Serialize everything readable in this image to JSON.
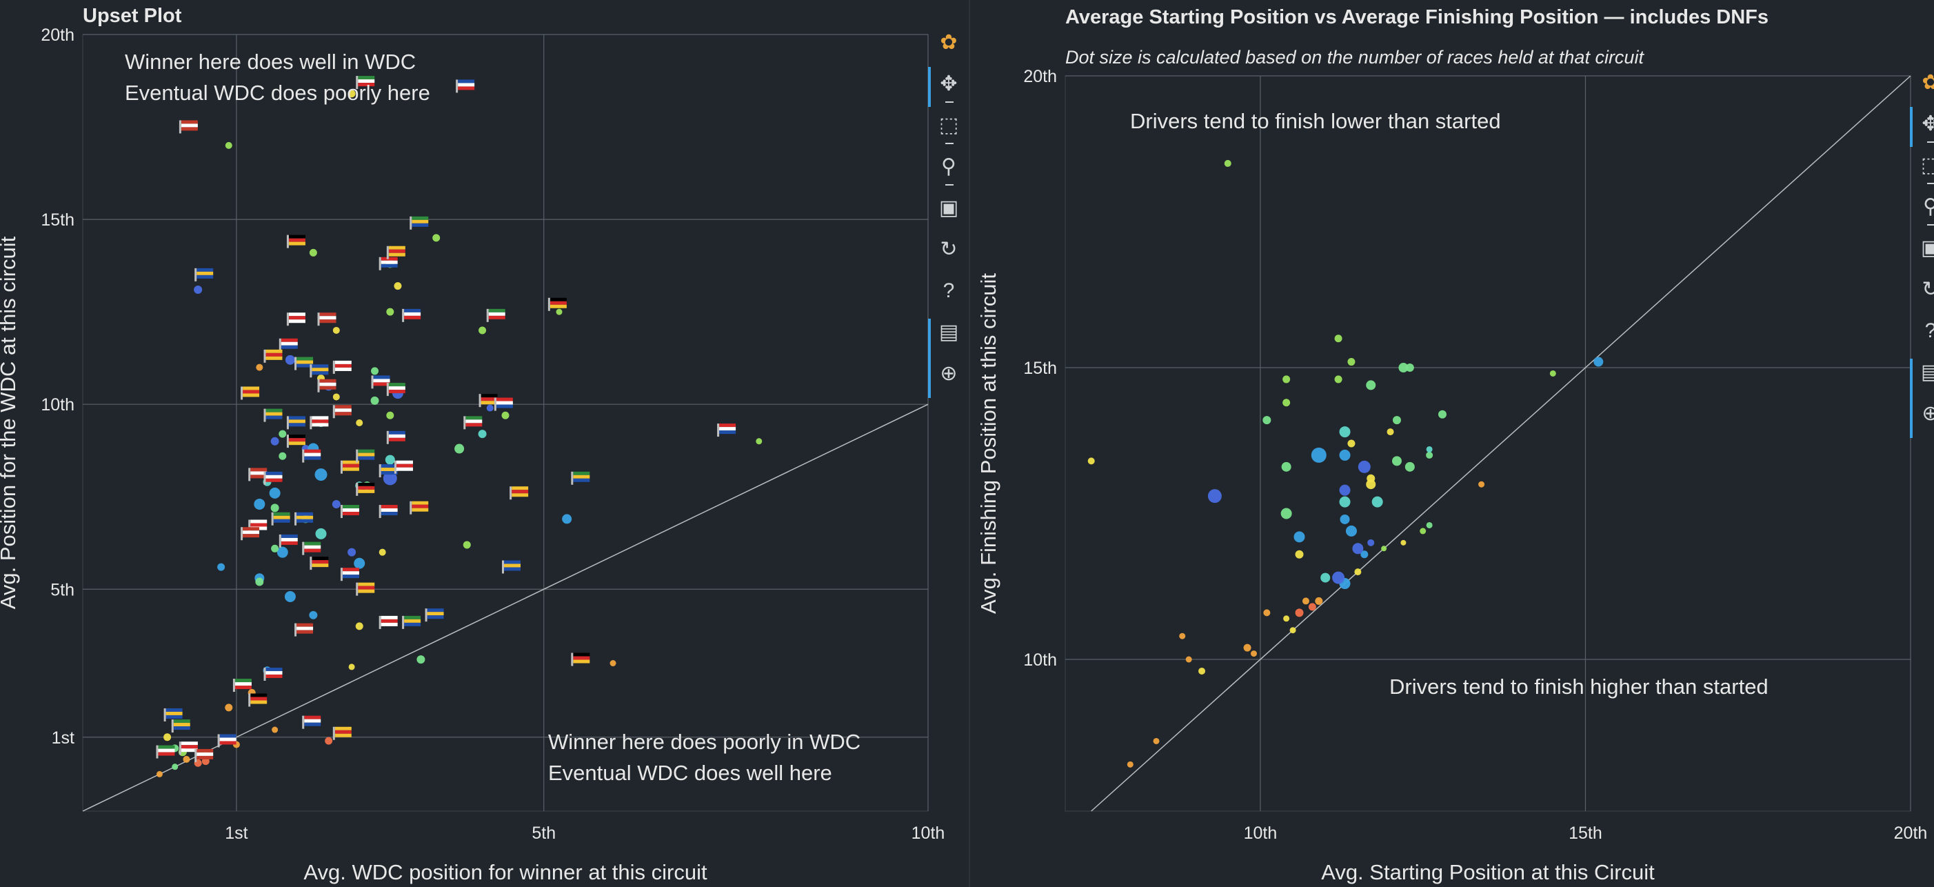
{
  "colors": {
    "background": "#20262b",
    "grid": "#5a6168",
    "text": "#e8e8e8",
    "diagonal": "#b9bcc0",
    "toolbar_active": "#3aa1e4"
  },
  "toolbar_icons": [
    "bokeh-logo-icon",
    "pan-icon",
    "box-zoom-icon",
    "wheel-zoom-icon",
    "save-icon",
    "reset-icon",
    "help-icon",
    "hover-icon",
    "crosshair-icon"
  ],
  "chart_data": [
    {
      "type": "scatter",
      "title": "Upset Plot",
      "xlabel": "Avg. WDC position for winner at this circuit",
      "ylabel": "Avg. Position for the WDC at this circuit",
      "xlim": [
        -1,
        10
      ],
      "ylim": [
        -1,
        20
      ],
      "x_ticks": [
        {
          "v": 1,
          "label": "1st"
        },
        {
          "v": 5,
          "label": "5th"
        },
        {
          "v": 10,
          "label": "10th"
        }
      ],
      "y_ticks": [
        {
          "v": 1,
          "label": "1st"
        },
        {
          "v": 5,
          "label": "5th"
        },
        {
          "v": 10,
          "label": "10th"
        },
        {
          "v": 15,
          "label": "15th"
        },
        {
          "v": 20,
          "label": "20th"
        }
      ],
      "grid": true,
      "diagonal": true,
      "annotations": [
        {
          "lines": [
            "Winner here does well in WDC",
            "Eventual WDC does poorly here"
          ],
          "position": "top-left"
        },
        {
          "lines": [
            "Winner here does poorly in WDC",
            "Eventual WDC does well here"
          ],
          "position": "bottom-right"
        }
      ],
      "flags_note": "points are drawn with country flag markers",
      "points": [
        [
          0.9,
          17.0,
          8,
          "#9be15d"
        ],
        [
          2.0,
          14.1,
          9,
          "#9be15d"
        ],
        [
          2.5,
          18.4,
          9,
          "#f2e14b"
        ],
        [
          3.1,
          13.2,
          9,
          "#f2e14b"
        ],
        [
          2.3,
          12.0,
          8,
          "#f2e14b"
        ],
        [
          0.5,
          13.1,
          10,
          "#4a6be0"
        ],
        [
          3.6,
          14.5,
          9,
          "#9be15d"
        ],
        [
          4.2,
          12.0,
          9,
          "#9be15d"
        ],
        [
          5.2,
          12.5,
          7,
          "#9be15d"
        ],
        [
          3.0,
          13.8,
          10,
          "#9be15d"
        ],
        [
          2.2,
          10.5,
          12,
          "#4a6be0"
        ],
        [
          1.7,
          11.2,
          12,
          "#4a6be0"
        ],
        [
          1.3,
          11.0,
          8,
          "#f2a33c"
        ],
        [
          2.1,
          10.7,
          9,
          "#f2e14b"
        ],
        [
          2.8,
          10.9,
          9,
          "#7ae28b"
        ],
        [
          3.1,
          10.3,
          14,
          "#4a6be0"
        ],
        [
          2.8,
          10.1,
          10,
          "#7ae28b"
        ],
        [
          2.1,
          9.5,
          10,
          "#5fd7c9"
        ],
        [
          1.6,
          9.2,
          9,
          "#7ae28b"
        ],
        [
          1.5,
          9.0,
          10,
          "#4a6be0"
        ],
        [
          1.9,
          8.8,
          9,
          "#4a6be0"
        ],
        [
          2.0,
          8.8,
          14,
          "#3aa1e4"
        ],
        [
          1.6,
          8.6,
          9,
          "#7ae28b"
        ],
        [
          2.1,
          8.1,
          16,
          "#3aa1e4"
        ],
        [
          1.4,
          7.9,
          10,
          "#5fd7c9"
        ],
        [
          1.5,
          7.6,
          14,
          "#3aa1e4"
        ],
        [
          1.3,
          7.3,
          14,
          "#3aa1e4"
        ],
        [
          1.5,
          7.2,
          10,
          "#7ae28b"
        ],
        [
          2.7,
          7.8,
          10,
          "#7ae28b"
        ],
        [
          3.0,
          8.5,
          12,
          "#5fd7c9"
        ],
        [
          3.0,
          8.0,
          18,
          "#4a6be0"
        ],
        [
          2.6,
          7.8,
          10,
          "#5fd7c9"
        ],
        [
          2.3,
          7.3,
          10,
          "#4a6be0"
        ],
        [
          1.9,
          6.9,
          10,
          "#7ae28b"
        ],
        [
          2.1,
          6.5,
          14,
          "#5fd7c9"
        ],
        [
          2.5,
          6.0,
          10,
          "#4a6be0"
        ],
        [
          1.6,
          6.0,
          14,
          "#3aa1e4"
        ],
        [
          1.5,
          6.1,
          9,
          "#7ae28b"
        ],
        [
          2.9,
          6.0,
          8,
          "#f2e14b"
        ],
        [
          0.8,
          5.6,
          9,
          "#3aa1e4"
        ],
        [
          1.3,
          5.3,
          12,
          "#3aa1e4"
        ],
        [
          1.3,
          5.2,
          10,
          "#7ae28b"
        ],
        [
          1.7,
          4.8,
          14,
          "#3aa1e4"
        ],
        [
          2.6,
          5.7,
          14,
          "#3aa1e4"
        ],
        [
          2.0,
          4.3,
          10,
          "#3aa1e4"
        ],
        [
          2.6,
          4.0,
          9,
          "#f2e14b"
        ],
        [
          4.0,
          6.2,
          9,
          "#9be15d"
        ],
        [
          4.2,
          9.2,
          10,
          "#5fd7c9"
        ],
        [
          3.9,
          8.8,
          12,
          "#7ae28b"
        ],
        [
          4.5,
          9.7,
          9,
          "#9be15d"
        ],
        [
          4.3,
          9.9,
          8,
          "#4a6be0"
        ],
        [
          5.3,
          6.9,
          12,
          "#3aa1e4"
        ],
        [
          7.8,
          9.0,
          7,
          "#9be15d"
        ],
        [
          5.9,
          3.0,
          7,
          "#f2a33c"
        ],
        [
          2.5,
          2.9,
          7,
          "#f2e14b"
        ],
        [
          3.4,
          3.1,
          10,
          "#7ae28b"
        ],
        [
          1.4,
          2.8,
          10,
          "#3aa1e4"
        ],
        [
          1.2,
          2.2,
          9,
          "#f2a33c"
        ],
        [
          0.9,
          1.8,
          9,
          "#f2a33c"
        ],
        [
          1.0,
          0.8,
          8,
          "#f2a33c"
        ],
        [
          1.5,
          1.2,
          7,
          "#f2a33c"
        ],
        [
          2.2,
          0.9,
          9,
          "#f2704a"
        ],
        [
          0.1,
          1.0,
          9,
          "#f2e14b"
        ],
        [
          0.2,
          0.7,
          9,
          "#7ae28b"
        ],
        [
          0.3,
          0.6,
          10,
          "#9be15d"
        ],
        [
          0.35,
          0.4,
          8,
          "#f2a33c"
        ],
        [
          0.5,
          0.3,
          9,
          "#f2704a"
        ],
        [
          0.6,
          0.35,
          9,
          "#f2704a"
        ],
        [
          0.0,
          0.0,
          7,
          "#f2a33c"
        ],
        [
          0.2,
          0.2,
          7,
          "#7ae28b"
        ],
        [
          3.0,
          12.5,
          9,
          "#9be15d"
        ],
        [
          2.3,
          10.2,
          8,
          "#f2e14b"
        ],
        [
          2.6,
          9.5,
          8,
          "#f2e14b"
        ],
        [
          3.0,
          9.7,
          9,
          "#9be15d"
        ]
      ],
      "flags": [
        [
          0.3,
          17.4
        ],
        [
          3.9,
          18.5
        ],
        [
          2.6,
          18.6
        ],
        [
          1.7,
          14.3
        ],
        [
          2.9,
          13.7
        ],
        [
          3.0,
          14.0
        ],
        [
          3.3,
          14.8
        ],
        [
          0.5,
          13.4
        ],
        [
          1.7,
          12.2
        ],
        [
          2.1,
          12.2
        ],
        [
          3.2,
          12.3
        ],
        [
          4.3,
          12.3
        ],
        [
          5.1,
          12.6
        ],
        [
          1.6,
          11.5
        ],
        [
          1.4,
          11.2
        ],
        [
          1.8,
          11.0
        ],
        [
          2.0,
          10.8
        ],
        [
          2.3,
          10.9
        ],
        [
          2.1,
          10.4
        ],
        [
          2.8,
          10.5
        ],
        [
          3.0,
          10.3
        ],
        [
          4.2,
          10.0
        ],
        [
          4.4,
          9.9
        ],
        [
          1.1,
          10.2
        ],
        [
          1.4,
          9.6
        ],
        [
          1.7,
          9.4
        ],
        [
          2.0,
          9.4
        ],
        [
          2.3,
          9.7
        ],
        [
          3.0,
          9.0
        ],
        [
          4.0,
          9.4
        ],
        [
          1.7,
          8.9
        ],
        [
          1.9,
          8.5
        ],
        [
          2.4,
          8.2
        ],
        [
          2.6,
          8.5
        ],
        [
          2.9,
          8.1
        ],
        [
          3.1,
          8.2
        ],
        [
          1.2,
          8.0
        ],
        [
          1.4,
          7.9
        ],
        [
          2.4,
          7.0
        ],
        [
          2.6,
          7.6
        ],
        [
          2.9,
          7.0
        ],
        [
          3.3,
          7.1
        ],
        [
          1.5,
          6.8
        ],
        [
          1.8,
          6.8
        ],
        [
          1.2,
          6.6
        ],
        [
          1.1,
          6.4
        ],
        [
          1.6,
          6.2
        ],
        [
          1.9,
          6.0
        ],
        [
          2.0,
          5.6
        ],
        [
          2.4,
          5.3
        ],
        [
          2.6,
          4.9
        ],
        [
          3.2,
          4.0
        ],
        [
          3.5,
          4.2
        ],
        [
          2.9,
          4.0
        ],
        [
          1.8,
          3.8
        ],
        [
          1.4,
          2.6
        ],
        [
          1.0,
          2.3
        ],
        [
          1.2,
          1.9
        ],
        [
          1.9,
          1.3
        ],
        [
          2.3,
          1.0
        ],
        [
          0.2,
          1.2
        ],
        [
          0.1,
          1.5
        ],
        [
          0.3,
          0.6
        ],
        [
          0.5,
          0.4
        ],
        [
          0.8,
          0.8
        ],
        [
          0.0,
          0.5
        ],
        [
          5.4,
          3.0
        ],
        [
          7.3,
          9.2
        ],
        [
          4.6,
          7.5
        ],
        [
          5.4,
          7.9
        ],
        [
          4.5,
          5.5
        ]
      ]
    },
    {
      "type": "scatter",
      "title": "Average Starting Position vs Average Finishing Position — includes DNFs",
      "subtitle": "Dot size is calculated based on the number of races held at that circuit",
      "xlabel": "Avg. Starting Position at this Circuit",
      "ylabel": "Avg. Finishing Position at this circuit",
      "xlim": [
        7,
        20
      ],
      "ylim": [
        7.4,
        20
      ],
      "x_ticks": [
        {
          "v": 10,
          "label": "10th"
        },
        {
          "v": 15,
          "label": "15th"
        },
        {
          "v": 20,
          "label": "20th"
        }
      ],
      "y_ticks": [
        {
          "v": 10,
          "label": "10th"
        },
        {
          "v": 15,
          "label": "15th"
        },
        {
          "v": 20,
          "label": "20th"
        }
      ],
      "grid": true,
      "diagonal": true,
      "annotations": [
        {
          "lines": [
            "Drivers tend to finish lower than started"
          ],
          "position": "top-left"
        },
        {
          "lines": [
            "Drivers tend to finish higher than started"
          ],
          "position": "bottom-right"
        }
      ],
      "points": [
        [
          9.5,
          18.5,
          8,
          "#9be15d"
        ],
        [
          7.4,
          13.4,
          8,
          "#f2e14b"
        ],
        [
          9.3,
          12.8,
          18,
          "#4a6be0"
        ],
        [
          8.8,
          10.4,
          7,
          "#f2a33c"
        ],
        [
          9.1,
          9.8,
          8,
          "#f2e14b"
        ],
        [
          8.9,
          10.0,
          7,
          "#f2a33c"
        ],
        [
          8.4,
          8.6,
          7,
          "#f2a33c"
        ],
        [
          8.0,
          8.2,
          7,
          "#f2a33c"
        ],
        [
          9.8,
          10.2,
          9,
          "#f2a33c"
        ],
        [
          10.1,
          10.8,
          8,
          "#f2a33c"
        ],
        [
          10.4,
          10.7,
          7,
          "#f2e14b"
        ],
        [
          10.6,
          10.8,
          10,
          "#f2704a"
        ],
        [
          10.8,
          10.9,
          9,
          "#f2704a"
        ],
        [
          10.9,
          11.0,
          9,
          "#f2a33c"
        ],
        [
          10.7,
          11.0,
          8,
          "#f2a33c"
        ],
        [
          10.5,
          10.5,
          7,
          "#f2e14b"
        ],
        [
          11.3,
          11.3,
          14,
          "#3aa1e4"
        ],
        [
          11.2,
          11.4,
          16,
          "#4a6be0"
        ],
        [
          11.0,
          11.4,
          12,
          "#5fd7c9"
        ],
        [
          11.5,
          11.5,
          8,
          "#f2e14b"
        ],
        [
          10.6,
          11.8,
          10,
          "#f2e14b"
        ],
        [
          10.6,
          12.1,
          14,
          "#3aa1e4"
        ],
        [
          10.4,
          12.5,
          14,
          "#7ae28b"
        ],
        [
          10.4,
          13.3,
          12,
          "#7ae28b"
        ],
        [
          10.9,
          13.5,
          20,
          "#3aa1e4"
        ],
        [
          11.3,
          13.5,
          14,
          "#3aa1e4"
        ],
        [
          11.3,
          13.9,
          14,
          "#5fd7c9"
        ],
        [
          11.4,
          13.7,
          9,
          "#f2e14b"
        ],
        [
          11.6,
          13.3,
          16,
          "#4a6be0"
        ],
        [
          11.3,
          12.9,
          14,
          "#4a6be0"
        ],
        [
          11.3,
          12.7,
          14,
          "#5fd7c9"
        ],
        [
          11.3,
          12.4,
          12,
          "#3aa1e4"
        ],
        [
          11.4,
          12.2,
          14,
          "#3aa1e4"
        ],
        [
          11.7,
          13.0,
          12,
          "#f2e14b"
        ],
        [
          11.7,
          13.1,
          10,
          "#f2e14b"
        ],
        [
          11.8,
          12.7,
          14,
          "#5fd7c9"
        ],
        [
          11.6,
          11.8,
          9,
          "#3aa1e4"
        ],
        [
          11.7,
          12.0,
          8,
          "#4a6be0"
        ],
        [
          12.1,
          13.4,
          12,
          "#7ae28b"
        ],
        [
          12.3,
          13.3,
          12,
          "#7ae28b"
        ],
        [
          11.5,
          11.9,
          14,
          "#4a6be0"
        ],
        [
          12.1,
          14.1,
          10,
          "#7ae28b"
        ],
        [
          12.0,
          13.9,
          8,
          "#f2e14b"
        ],
        [
          10.1,
          14.1,
          10,
          "#7ae28b"
        ],
        [
          10.4,
          14.4,
          9,
          "#9be15d"
        ],
        [
          10.4,
          14.8,
          9,
          "#9be15d"
        ],
        [
          11.2,
          14.8,
          9,
          "#9be15d"
        ],
        [
          11.7,
          14.7,
          12,
          "#7ae28b"
        ],
        [
          12.2,
          15.0,
          12,
          "#7ae28b"
        ],
        [
          12.3,
          15.0,
          10,
          "#7ae28b"
        ],
        [
          11.4,
          15.1,
          9,
          "#9be15d"
        ],
        [
          11.2,
          15.5,
          9,
          "#9be15d"
        ],
        [
          12.8,
          14.2,
          10,
          "#7ae28b"
        ],
        [
          12.6,
          13.5,
          8,
          "#7ae28b"
        ],
        [
          12.6,
          13.6,
          7,
          "#5fd7c9"
        ],
        [
          11.9,
          11.9,
          6,
          "#9be15d"
        ],
        [
          12.2,
          12.0,
          6,
          "#f2e14b"
        ],
        [
          12.5,
          12.2,
          7,
          "#9be15d"
        ],
        [
          12.6,
          12.3,
          7,
          "#7ae28b"
        ],
        [
          13.4,
          13.0,
          7,
          "#f2a33c"
        ],
        [
          14.5,
          14.9,
          7,
          "#9be15d"
        ],
        [
          15.2,
          15.1,
          12,
          "#3aa1e4"
        ],
        [
          9.9,
          10.1,
          7,
          "#f2a33c"
        ]
      ]
    }
  ]
}
